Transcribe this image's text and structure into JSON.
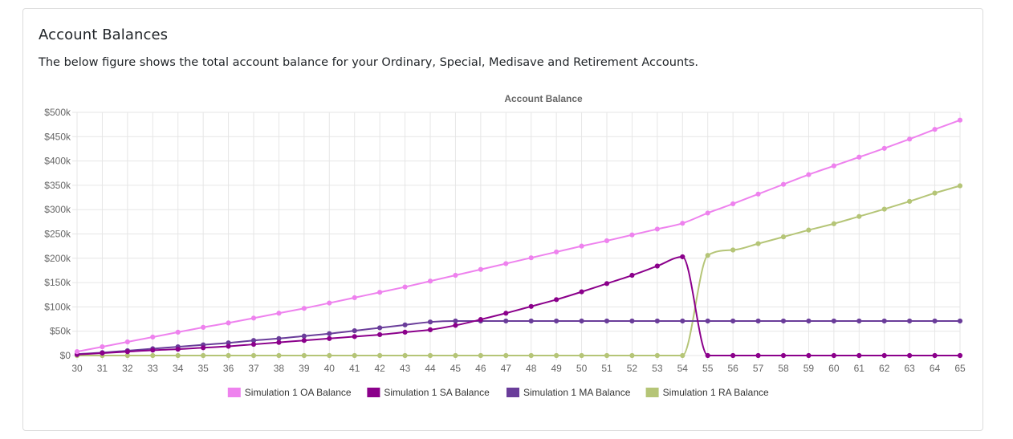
{
  "section": {
    "title": "Account Balances",
    "description": "The below figure shows the total account balance for your Ordinary, Special, Medisave and Retirement Accounts."
  },
  "chart_data": {
    "type": "line",
    "title": "Account Balance",
    "xlabel": "",
    "ylabel": "",
    "ylim": [
      0,
      500000
    ],
    "grid": true,
    "legend": "bottom",
    "y_tick_labels": [
      "$0",
      "$50k",
      "$100k",
      "$150k",
      "$200k",
      "$250k",
      "$300k",
      "$350k",
      "$400k",
      "$450k",
      "$500k"
    ],
    "x": [
      30,
      31,
      32,
      33,
      34,
      35,
      36,
      37,
      38,
      39,
      40,
      41,
      42,
      43,
      44,
      45,
      46,
      47,
      48,
      49,
      50,
      51,
      52,
      53,
      54,
      55,
      56,
      57,
      58,
      59,
      60,
      61,
      62,
      63,
      64,
      65
    ],
    "series": [
      {
        "name": "Simulation 1 OA Balance",
        "color": "#ee82ee",
        "values": [
          8000,
          18000,
          28000,
          38000,
          48000,
          58000,
          67000,
          77000,
          87000,
          97000,
          108000,
          119000,
          130000,
          141000,
          153000,
          165000,
          177000,
          189000,
          201000,
          213000,
          225000,
          236000,
          248000,
          260000,
          272000,
          293000,
          312000,
          332000,
          352000,
          372000,
          390000,
          408000,
          426000,
          445000,
          465000,
          484000
        ]
      },
      {
        "name": "Simulation 1 SA Balance",
        "color": "#8b008b",
        "values": [
          2000,
          5000,
          8000,
          11000,
          13000,
          16000,
          19000,
          23000,
          27000,
          31000,
          35000,
          39000,
          43000,
          48000,
          53000,
          62000,
          74000,
          87000,
          101000,
          115000,
          131000,
          148000,
          165000,
          184000,
          203000,
          0,
          0,
          0,
          0,
          0,
          0,
          0,
          0,
          0,
          0,
          0
        ]
      },
      {
        "name": "Simulation 1 MA Balance",
        "color": "#6a3d9a",
        "values": [
          3000,
          6000,
          10000,
          14000,
          18000,
          22000,
          26000,
          31000,
          35000,
          40000,
          45000,
          51000,
          57000,
          63000,
          69000,
          71000,
          71000,
          71000,
          71000,
          71000,
          71000,
          71000,
          71000,
          71000,
          71000,
          71000,
          71000,
          71000,
          71000,
          71000,
          71000,
          71000,
          71000,
          71000,
          71000,
          71000
        ]
      },
      {
        "name": "Simulation 1 RA Balance",
        "color": "#b5c577",
        "values": [
          0,
          0,
          0,
          0,
          0,
          0,
          0,
          0,
          0,
          0,
          0,
          0,
          0,
          0,
          0,
          0,
          0,
          0,
          0,
          0,
          0,
          0,
          0,
          0,
          0,
          206000,
          217000,
          230000,
          244000,
          258000,
          271000,
          286000,
          301000,
          317000,
          334000,
          349000
        ]
      }
    ]
  }
}
